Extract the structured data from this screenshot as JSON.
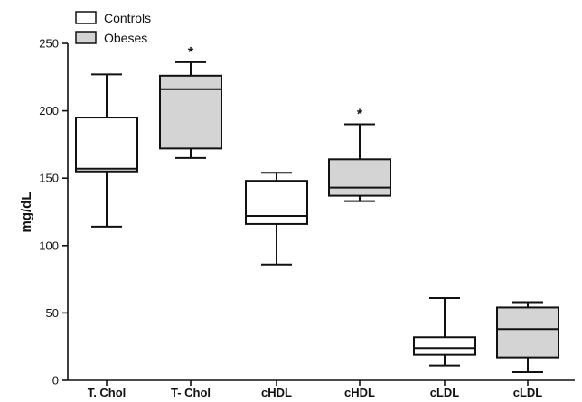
{
  "chart_data": {
    "type": "boxplot",
    "ylabel": "mg/dL",
    "ylim": [
      0,
      250
    ],
    "yticks": [
      "0",
      "50",
      "100",
      "150",
      "200",
      "250"
    ],
    "ytick_values": [
      0,
      50,
      100,
      150,
      200,
      250
    ],
    "legend": [
      {
        "name": "Controls",
        "color": "#ffffff"
      },
      {
        "name": "Obeses",
        "color": "#d4d4d4"
      }
    ],
    "legend_position": "top-left",
    "categories": [
      "T. Chol",
      "T- Chol",
      "cHDL",
      "cHDL",
      "cLDL",
      "cLDL"
    ],
    "boxes": [
      {
        "category": "T. Chol",
        "group": "Controls",
        "min": 114,
        "q1": 155,
        "median": 157,
        "q3": 195,
        "max": 227,
        "annotation": ""
      },
      {
        "category": "T- Chol",
        "group": "Obeses",
        "min": 165,
        "q1": 172,
        "median": 216,
        "q3": 226,
        "max": 236,
        "annotation": "*"
      },
      {
        "category": "cHDL",
        "group": "Controls",
        "min": 86,
        "q1": 116,
        "median": 122,
        "q3": 148,
        "max": 154,
        "annotation": ""
      },
      {
        "category": "cHDL",
        "group": "Obeses",
        "min": 133,
        "q1": 137,
        "median": 143,
        "q3": 164,
        "max": 190,
        "annotation": "*"
      },
      {
        "category": "cLDL",
        "group": "Controls",
        "min": 11,
        "q1": 19,
        "median": 24,
        "q3": 32,
        "max": 61,
        "annotation": ""
      },
      {
        "category": "cLDL",
        "group": "Obeses",
        "min": 6,
        "q1": 17,
        "median": 38,
        "q3": 54,
        "max": 58,
        "annotation": ""
      }
    ]
  }
}
